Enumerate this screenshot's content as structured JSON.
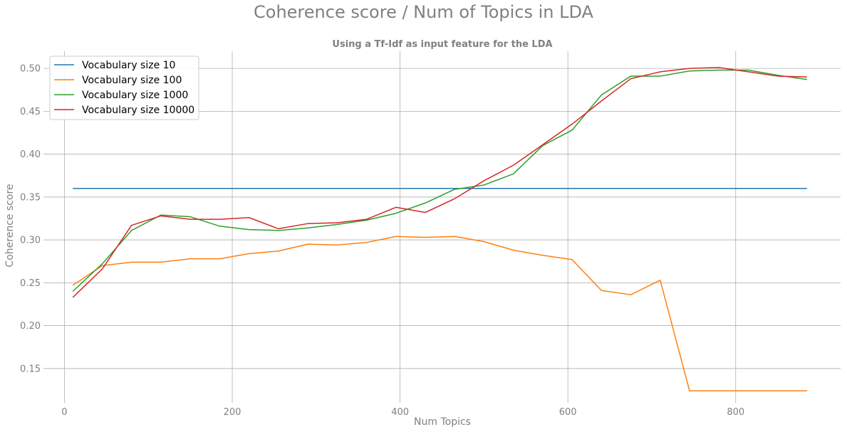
{
  "suptitle": "Coherence score / Num of Topics in LDA",
  "chart_data": {
    "type": "line",
    "title": "Using a Tf-Idf as input feature for the LDA",
    "xlabel": "Num Topics",
    "ylabel": "Coherence score",
    "xlim": [
      -25,
      925
    ],
    "ylim": [
      0.11,
      0.52
    ],
    "xticks": [
      0,
      200,
      400,
      600,
      800
    ],
    "yticks": [
      0.15,
      0.2,
      0.25,
      0.3,
      0.35,
      0.4,
      0.45,
      0.5
    ],
    "grid": true,
    "legend_position": "upper left",
    "x": [
      10,
      45,
      80,
      115,
      150,
      185,
      220,
      255,
      290,
      325,
      360,
      395,
      430,
      465,
      500,
      535,
      570,
      605,
      640,
      675,
      710,
      745,
      780,
      815,
      850,
      885
    ],
    "series": [
      {
        "name": "Vocabulary size 10",
        "color": "#1f77b4",
        "values": [
          0.36,
          0.36,
          0.36,
          0.36,
          0.36,
          0.36,
          0.36,
          0.36,
          0.36,
          0.36,
          0.36,
          0.36,
          0.36,
          0.36,
          0.36,
          0.36,
          0.36,
          0.36,
          0.36,
          0.36,
          0.36,
          0.36,
          0.36,
          0.36,
          0.36,
          0.36
        ]
      },
      {
        "name": "Vocabulary size 100",
        "color": "#ff7f0e",
        "values": [
          0.247,
          0.27,
          0.274,
          0.274,
          0.278,
          0.278,
          0.284,
          0.287,
          0.295,
          0.294,
          0.297,
          0.304,
          0.303,
          0.304,
          0.298,
          0.288,
          0.282,
          0.277,
          0.241,
          0.236,
          0.253,
          0.124,
          0.124,
          0.124,
          0.124,
          0.124
        ]
      },
      {
        "name": "Vocabulary size 1000",
        "color": "#2ca02c",
        "values": [
          0.24,
          0.272,
          0.311,
          0.329,
          0.327,
          0.316,
          0.312,
          0.311,
          0.314,
          0.318,
          0.323,
          0.331,
          0.343,
          0.359,
          0.364,
          0.377,
          0.41,
          0.428,
          0.469,
          0.491,
          0.491,
          0.497,
          0.498,
          0.498,
          0.492,
          0.487
        ]
      },
      {
        "name": "Vocabulary size 10000",
        "color": "#d62728",
        "values": [
          0.233,
          0.266,
          0.317,
          0.328,
          0.324,
          0.324,
          0.326,
          0.313,
          0.319,
          0.32,
          0.324,
          0.338,
          0.332,
          0.348,
          0.369,
          0.387,
          0.411,
          0.435,
          0.462,
          0.488,
          0.496,
          0.5,
          0.501,
          0.496,
          0.491,
          0.49
        ]
      }
    ]
  }
}
